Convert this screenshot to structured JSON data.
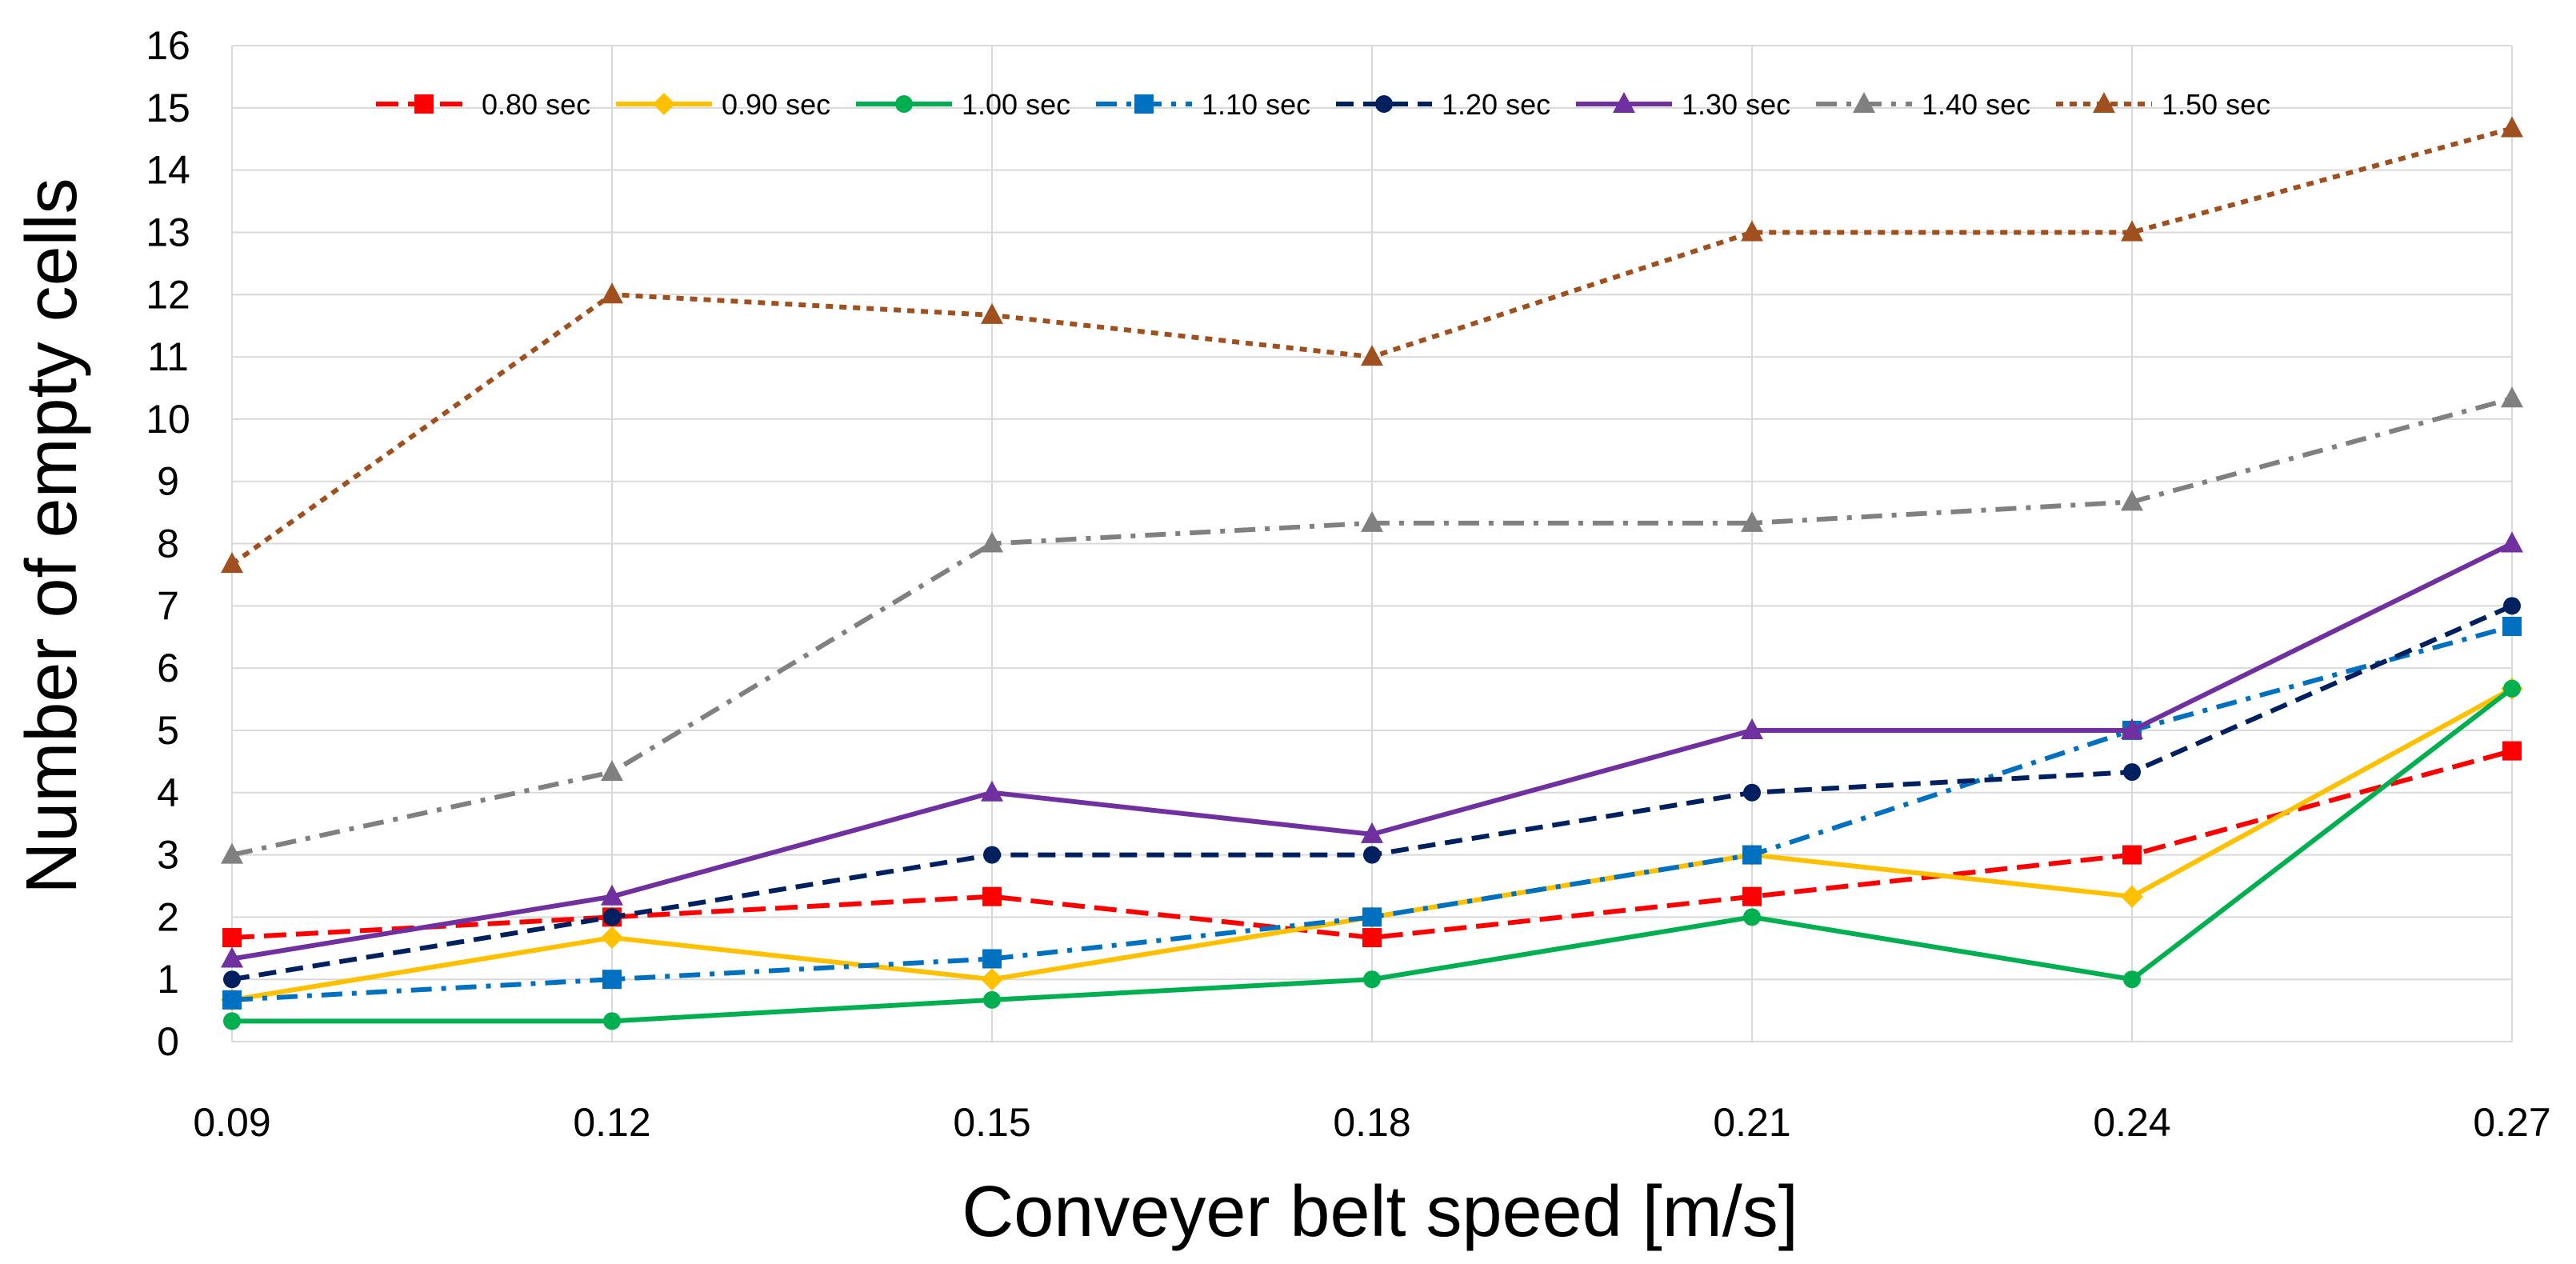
{
  "chart_data": {
    "type": "line",
    "title": "",
    "xlabel": "Conveyer belt speed [m/s]",
    "ylabel": "Number of empty cells",
    "categories": [
      "0.09",
      "0.12",
      "0.15",
      "0.18",
      "0.21",
      "0.24",
      "0.27"
    ],
    "ylim": [
      0,
      16
    ],
    "yticks": [
      0,
      1,
      2,
      3,
      4,
      5,
      6,
      7,
      8,
      9,
      10,
      11,
      12,
      13,
      14,
      15,
      16
    ],
    "grid": true,
    "legend_position": "top",
    "series": [
      {
        "name": "0.80 sec",
        "color": "#ff0000",
        "marker": "square",
        "dash": "long-dash",
        "values": [
          1.67,
          2.0,
          2.33,
          1.67,
          2.33,
          3.0,
          4.67
        ]
      },
      {
        "name": "0.90 sec",
        "color": "#ffc000",
        "marker": "diamond",
        "dash": "solid",
        "values": [
          0.67,
          1.67,
          1.0,
          2.0,
          3.0,
          2.33,
          5.67
        ]
      },
      {
        "name": "1.00 sec",
        "color": "#00b050",
        "marker": "circle",
        "dash": "solid",
        "values": [
          0.33,
          0.33,
          0.67,
          1.0,
          2.0,
          1.0,
          5.67
        ]
      },
      {
        "name": "1.10 sec",
        "color": "#0070c0",
        "marker": "square",
        "dash": "dash-dot",
        "values": [
          0.67,
          1.0,
          1.33,
          2.0,
          3.0,
          5.0,
          6.67
        ]
      },
      {
        "name": "1.20 sec",
        "color": "#002060",
        "marker": "circle",
        "dash": "dash",
        "values": [
          1.0,
          2.0,
          3.0,
          3.0,
          4.0,
          4.33,
          7.0
        ]
      },
      {
        "name": "1.30 sec",
        "color": "#7030a0",
        "marker": "triangle",
        "dash": "solid",
        "values": [
          1.33,
          2.33,
          4.0,
          3.33,
          5.0,
          5.0,
          8.0
        ]
      },
      {
        "name": "1.40 sec",
        "color": "#808080",
        "marker": "triangle",
        "dash": "dash-dot",
        "values": [
          3.0,
          4.33,
          8.0,
          8.33,
          8.33,
          8.67,
          10.33
        ]
      },
      {
        "name": "1.50 sec",
        "color": "#a0501e",
        "marker": "triangle",
        "dash": "dot",
        "values": [
          7.67,
          12.0,
          11.67,
          11.0,
          13.0,
          13.0,
          14.67
        ]
      }
    ]
  }
}
